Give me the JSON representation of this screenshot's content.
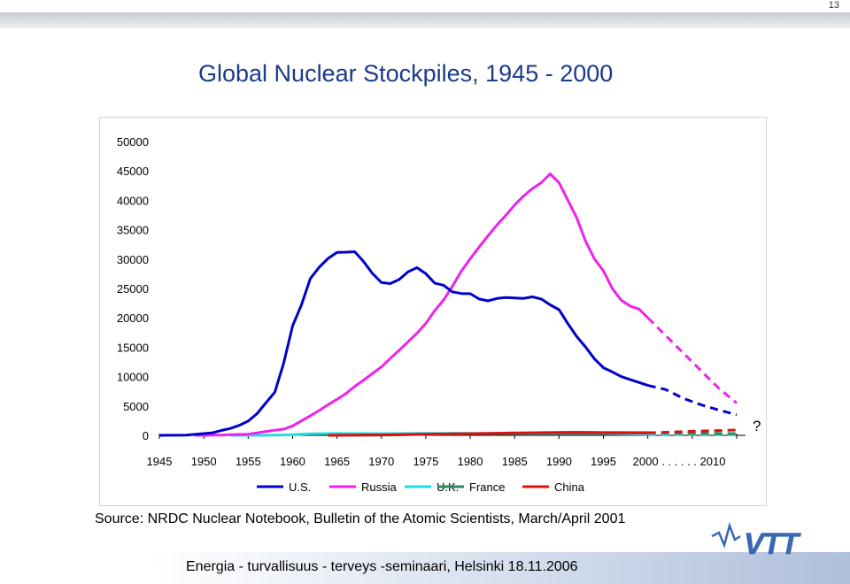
{
  "page_number": "13",
  "slide_title": "Global Nuclear Stockpiles, 1945 - 2000",
  "source_note": "Source: NRDC Nuclear Notebook, Bulletin of the Atomic Scientists, March/April 2001",
  "footer": "Energia - turvallisuus - terveys -seminaari, Helsinki 18.11.2006",
  "logo_text": "VTT",
  "chart_data": {
    "type": "line",
    "title": "",
    "xlabel": "",
    "ylabel": "",
    "ylim": [
      0,
      50000
    ],
    "yticks": [
      0,
      5000,
      10000,
      15000,
      20000,
      25000,
      30000,
      35000,
      40000,
      45000,
      50000
    ],
    "x_tick_labels": [
      "1945",
      "1950",
      "1955",
      "1960",
      "1965",
      "1970",
      "1975",
      "1980",
      "1985",
      "1990",
      "1995",
      "2000 . . . . . . 2010"
    ],
    "question_mark": "?",
    "grid": false,
    "legend": "bottom",
    "series": [
      {
        "name": "U.S.",
        "color": "#0000cc",
        "values": [
          [
            1945,
            2
          ],
          [
            1946,
            9
          ],
          [
            1947,
            13
          ],
          [
            1948,
            50
          ],
          [
            1949,
            170
          ],
          [
            1950,
            299
          ],
          [
            1951,
            438
          ],
          [
            1952,
            841
          ],
          [
            1953,
            1169
          ],
          [
            1954,
            1703
          ],
          [
            1955,
            2422
          ],
          [
            1956,
            3692
          ],
          [
            1957,
            5543
          ],
          [
            1958,
            7345
          ],
          [
            1959,
            12298
          ],
          [
            1960,
            18638
          ],
          [
            1961,
            22229
          ],
          [
            1962,
            26681
          ],
          [
            1963,
            28609
          ],
          [
            1964,
            30113
          ],
          [
            1965,
            31139
          ],
          [
            1966,
            31175
          ],
          [
            1967,
            31255
          ],
          [
            1968,
            29561
          ],
          [
            1969,
            27552
          ],
          [
            1970,
            26008
          ],
          [
            1971,
            25830
          ],
          [
            1972,
            26516
          ],
          [
            1973,
            27835
          ],
          [
            1974,
            28537
          ],
          [
            1975,
            27519
          ],
          [
            1976,
            25914
          ],
          [
            1977,
            25542
          ],
          [
            1978,
            24418
          ],
          [
            1979,
            24138
          ],
          [
            1980,
            24104
          ],
          [
            1981,
            23208
          ],
          [
            1982,
            22886
          ],
          [
            1983,
            23305
          ],
          [
            1984,
            23459
          ],
          [
            1985,
            23368
          ],
          [
            1986,
            23317
          ],
          [
            1987,
            23575
          ],
          [
            1988,
            23205
          ],
          [
            1989,
            22217
          ],
          [
            1990,
            21392
          ],
          [
            1991,
            19008
          ],
          [
            1992,
            16800
          ],
          [
            1993,
            15000
          ],
          [
            1994,
            13000
          ],
          [
            1995,
            11500
          ],
          [
            1996,
            10800
          ],
          [
            1997,
            10000
          ],
          [
            1998,
            9500
          ],
          [
            1999,
            9000
          ],
          [
            2000,
            8500
          ]
        ],
        "projection": [
          [
            2000,
            8500
          ],
          [
            2002,
            7800
          ],
          [
            2004,
            6300
          ],
          [
            2006,
            5200
          ],
          [
            2008,
            4300
          ],
          [
            2010,
            3500
          ]
        ]
      },
      {
        "name": "Russia",
        "color": "#ee22ee",
        "values": [
          [
            1949,
            1
          ],
          [
            1950,
            5
          ],
          [
            1951,
            25
          ],
          [
            1952,
            50
          ],
          [
            1953,
            120
          ],
          [
            1954,
            150
          ],
          [
            1955,
            200
          ],
          [
            1956,
            426
          ],
          [
            1957,
            660
          ],
          [
            1958,
            869
          ],
          [
            1959,
            1060
          ],
          [
            1960,
            1605
          ],
          [
            1961,
            2471
          ],
          [
            1962,
            3322
          ],
          [
            1963,
            4238
          ],
          [
            1964,
            5221
          ],
          [
            1965,
            6129
          ],
          [
            1966,
            7089
          ],
          [
            1967,
            8339
          ],
          [
            1968,
            9399
          ],
          [
            1969,
            10538
          ],
          [
            1970,
            11643
          ],
          [
            1971,
            13092
          ],
          [
            1972,
            14478
          ],
          [
            1973,
            15915
          ],
          [
            1974,
            17385
          ],
          [
            1975,
            19055
          ],
          [
            1976,
            21205
          ],
          [
            1977,
            23044
          ],
          [
            1978,
            25393
          ],
          [
            1979,
            27935
          ],
          [
            1980,
            30062
          ],
          [
            1981,
            32049
          ],
          [
            1982,
            33952
          ],
          [
            1983,
            35804
          ],
          [
            1984,
            37431
          ],
          [
            1985,
            39197
          ],
          [
            1986,
            40723
          ],
          [
            1987,
            42000
          ],
          [
            1988,
            43000
          ],
          [
            1989,
            44500
          ],
          [
            1990,
            43000
          ],
          [
            1991,
            40000
          ],
          [
            1992,
            37000
          ],
          [
            1993,
            33000
          ],
          [
            1994,
            30000
          ],
          [
            1995,
            28000
          ],
          [
            1996,
            25000
          ],
          [
            1997,
            23000
          ],
          [
            1998,
            22000
          ],
          [
            1999,
            21500
          ],
          [
            2000,
            20000
          ]
        ],
        "projection": [
          [
            2000,
            20000
          ],
          [
            2002,
            17000
          ],
          [
            2004,
            14000
          ],
          [
            2006,
            11000
          ],
          [
            2008,
            8000
          ],
          [
            2010,
            5500
          ]
        ]
      },
      {
        "name": "U.K.",
        "color": "#22dddd",
        "values": [
          [
            1953,
            1
          ],
          [
            1955,
            10
          ],
          [
            1957,
            20
          ],
          [
            1959,
            60
          ],
          [
            1960,
            100
          ],
          [
            1962,
            270
          ],
          [
            1965,
            310
          ],
          [
            1970,
            280
          ],
          [
            1975,
            350
          ],
          [
            1980,
            350
          ],
          [
            1985,
            300
          ],
          [
            1990,
            300
          ],
          [
            1995,
            300
          ],
          [
            2000,
            185
          ]
        ],
        "projection": [
          [
            2000,
            185
          ],
          [
            2005,
            185
          ],
          [
            2010,
            185
          ]
        ]
      },
      {
        "name": "France",
        "color": "#2a8a55",
        "values": [
          [
            1964,
            4
          ],
          [
            1966,
            36
          ],
          [
            1968,
            36
          ],
          [
            1970,
            36
          ],
          [
            1972,
            70
          ],
          [
            1975,
            188
          ],
          [
            1978,
            250
          ],
          [
            1980,
            250
          ],
          [
            1983,
            280
          ],
          [
            1985,
            360
          ],
          [
            1988,
            470
          ],
          [
            1990,
            505
          ],
          [
            1992,
            540
          ],
          [
            1995,
            500
          ],
          [
            2000,
            470
          ]
        ],
        "projection": [
          [
            2000,
            470
          ],
          [
            2005,
            350
          ],
          [
            2010,
            300
          ]
        ]
      },
      {
        "name": "China",
        "color": "#dd1111",
        "values": [
          [
            1964,
            1
          ],
          [
            1966,
            20
          ],
          [
            1970,
            75
          ],
          [
            1975,
            185
          ],
          [
            1980,
            280
          ],
          [
            1985,
            425
          ],
          [
            1990,
            430
          ],
          [
            1995,
            430
          ],
          [
            2000,
            400
          ]
        ],
        "projection": [
          [
            2000,
            400
          ],
          [
            2005,
            700
          ],
          [
            2010,
            900
          ]
        ]
      }
    ]
  }
}
